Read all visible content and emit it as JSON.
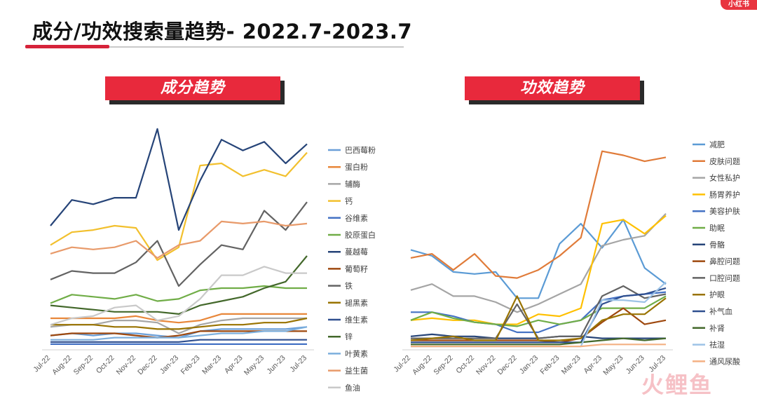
{
  "page": {
    "title": "成分/功效搜索量趋势- 2022.7-2023.7",
    "corner_badge": "小红书",
    "watermark": "火鲤鱼"
  },
  "colors": {
    "accent_red": "#e8293c",
    "banner_shadow": "#2a2a2a"
  },
  "chart_data": [
    {
      "type": "line",
      "title": "成分趋势",
      "categories": [
        "Jul-22",
        "Aug-22",
        "Sep-22",
        "Oct-22",
        "Nov-22",
        "Dec-22",
        "Jan-23",
        "Feb-23",
        "Mar-23",
        "Apr-23",
        "May-23",
        "Jun-23",
        "Jul-23"
      ],
      "ylim": [
        0,
        100
      ],
      "grid": false,
      "legend_position": "right",
      "series": [
        {
          "name": "巴西莓粉",
          "color": "#6a9fd8",
          "values": [
            6,
            7,
            6,
            7,
            7,
            6,
            5,
            8,
            9,
            9,
            9,
            9,
            10
          ]
        },
        {
          "name": "蛋白粉",
          "color": "#e8873a",
          "values": [
            14,
            14,
            14,
            14,
            15,
            13,
            12,
            13,
            16,
            16,
            16,
            16,
            16
          ]
        },
        {
          "name": "辅酶",
          "color": "#a6a6a6",
          "values": [
            10,
            11,
            11,
            13,
            13,
            12,
            7,
            11,
            13,
            14,
            14,
            14,
            14
          ]
        },
        {
          "name": "钙",
          "color": "#f2c02e",
          "values": [
            48,
            54,
            55,
            57,
            56,
            41,
            47,
            85,
            86,
            80,
            83,
            80,
            91
          ]
        },
        {
          "name": "谷维素",
          "color": "#4472c4",
          "values": [
            2,
            2,
            2,
            2,
            2,
            2,
            2,
            2,
            2,
            2,
            2,
            2,
            2
          ]
        },
        {
          "name": "胶原蛋白",
          "color": "#70ad47",
          "values": [
            21,
            25,
            24,
            23,
            25,
            22,
            23,
            27,
            28,
            28,
            29,
            28,
            28
          ]
        },
        {
          "name": "蔓越莓",
          "color": "#264478",
          "values": [
            57,
            69,
            67,
            70,
            70,
            102,
            55,
            78,
            97,
            92,
            96,
            86,
            95
          ]
        },
        {
          "name": "葡萄籽",
          "color": "#9e480e",
          "values": [
            6,
            7,
            7,
            7,
            6,
            5,
            6,
            8,
            8,
            8,
            8,
            8,
            8
          ]
        },
        {
          "name": "铁",
          "color": "#636363",
          "values": [
            32,
            36,
            35,
            35,
            40,
            50,
            29,
            39,
            48,
            46,
            64,
            55,
            68
          ]
        },
        {
          "name": "褪黑素",
          "color": "#997300",
          "values": [
            11,
            11,
            11,
            10,
            10,
            9,
            9,
            10,
            11,
            11,
            12,
            12,
            14
          ]
        },
        {
          "name": "维生素",
          "color": "#2f4f8f",
          "values": [
            3,
            3,
            3,
            3,
            3,
            3,
            3,
            4,
            4,
            4,
            4,
            4,
            4
          ]
        },
        {
          "name": "锌",
          "color": "#43682b",
          "values": [
            20,
            19,
            18,
            17,
            17,
            17,
            16,
            20,
            22,
            24,
            28,
            31,
            43
          ]
        },
        {
          "name": "叶黄素",
          "color": "#7cafdd",
          "values": [
            4,
            4,
            4,
            5,
            5,
            5,
            5,
            6,
            7,
            7,
            8,
            8,
            10
          ]
        },
        {
          "name": "益生菌",
          "color": "#e89a6a",
          "values": [
            44,
            47,
            46,
            47,
            50,
            42,
            48,
            50,
            59,
            58,
            59,
            57,
            58
          ]
        },
        {
          "name": "鱼油",
          "color": "#c9c9c9",
          "values": [
            11,
            14,
            15,
            19,
            20,
            13,
            15,
            23,
            34,
            34,
            38,
            35,
            35
          ]
        }
      ]
    },
    {
      "type": "line",
      "title": "功效趋势",
      "categories": [
        "Jul-22",
        "Aug-22",
        "Sep-22",
        "Oct-22",
        "Nov-22",
        "Dec-22",
        "Jan-23",
        "Feb-23",
        "Mar-23",
        "Apr-23",
        "May-23",
        "Jun-23",
        "Jul-23"
      ],
      "ylim": [
        0,
        100
      ],
      "grid": false,
      "legend_position": "right",
      "series": [
        {
          "name": "减肥",
          "color": "#5b9bd5",
          "values": [
            49,
            46,
            38,
            37,
            38,
            25,
            25,
            52,
            62,
            50,
            64,
            40,
            32
          ]
        },
        {
          "name": "皮肤问题",
          "color": "#e07b39",
          "values": [
            45,
            47,
            39,
            47,
            36,
            35,
            39,
            46,
            55,
            98,
            96,
            93,
            95
          ]
        },
        {
          "name": "女性私护",
          "color": "#a5a5a5",
          "values": [
            29,
            32,
            26,
            26,
            23,
            18,
            22,
            27,
            32,
            51,
            54,
            56,
            67
          ]
        },
        {
          "name": "肠胃养护",
          "color": "#ffc000",
          "values": [
            14,
            15,
            14,
            14,
            12,
            12,
            17,
            16,
            20,
            62,
            64,
            57,
            66
          ]
        },
        {
          "name": "美容护肤",
          "color": "#4472c4",
          "values": [
            18,
            18,
            16,
            13,
            12,
            8,
            8,
            12,
            14,
            24,
            26,
            27,
            28
          ]
        },
        {
          "name": "助眠",
          "color": "#70ad47",
          "values": [
            14,
            18,
            15,
            13,
            12,
            11,
            14,
            12,
            14,
            20,
            20,
            20,
            26
          ]
        },
        {
          "name": "骨骼",
          "color": "#264478",
          "values": [
            6,
            7,
            6,
            6,
            5,
            5,
            5,
            6,
            6,
            5,
            5,
            5,
            5
          ]
        },
        {
          "name": "鼻腔问题",
          "color": "#9e480e",
          "values": [
            4,
            4,
            4,
            4,
            4,
            4,
            4,
            3,
            5,
            13,
            20,
            12,
            14
          ]
        },
        {
          "name": "口腔问题",
          "color": "#636363",
          "values": [
            5,
            5,
            5,
            5,
            5,
            22,
            5,
            6,
            6,
            26,
            31,
            25,
            27
          ]
        },
        {
          "name": "护眼",
          "color": "#997300",
          "values": [
            4,
            5,
            6,
            4,
            4,
            26,
            4,
            4,
            5,
            14,
            17,
            17,
            25
          ]
        },
        {
          "name": "补气血",
          "color": "#2f4f8f",
          "values": [
            3,
            3,
            3,
            3,
            3,
            3,
            3,
            3,
            3,
            22,
            26,
            27,
            30
          ]
        },
        {
          "name": "补肾",
          "color": "#43682b",
          "values": [
            2,
            2,
            2,
            2,
            2,
            2,
            2,
            2,
            3,
            4,
            5,
            4,
            5
          ]
        },
        {
          "name": "祛湿",
          "color": "#9dc3e6",
          "values": [
            1,
            1,
            1,
            1,
            1,
            1,
            1,
            1,
            1,
            24,
            24,
            23,
            33
          ]
        },
        {
          "name": "通风尿酸",
          "color": "#f4b183",
          "values": [
            1,
            1,
            1,
            1,
            1,
            1,
            1,
            1,
            1,
            2,
            2,
            2,
            2
          ]
        }
      ]
    }
  ]
}
